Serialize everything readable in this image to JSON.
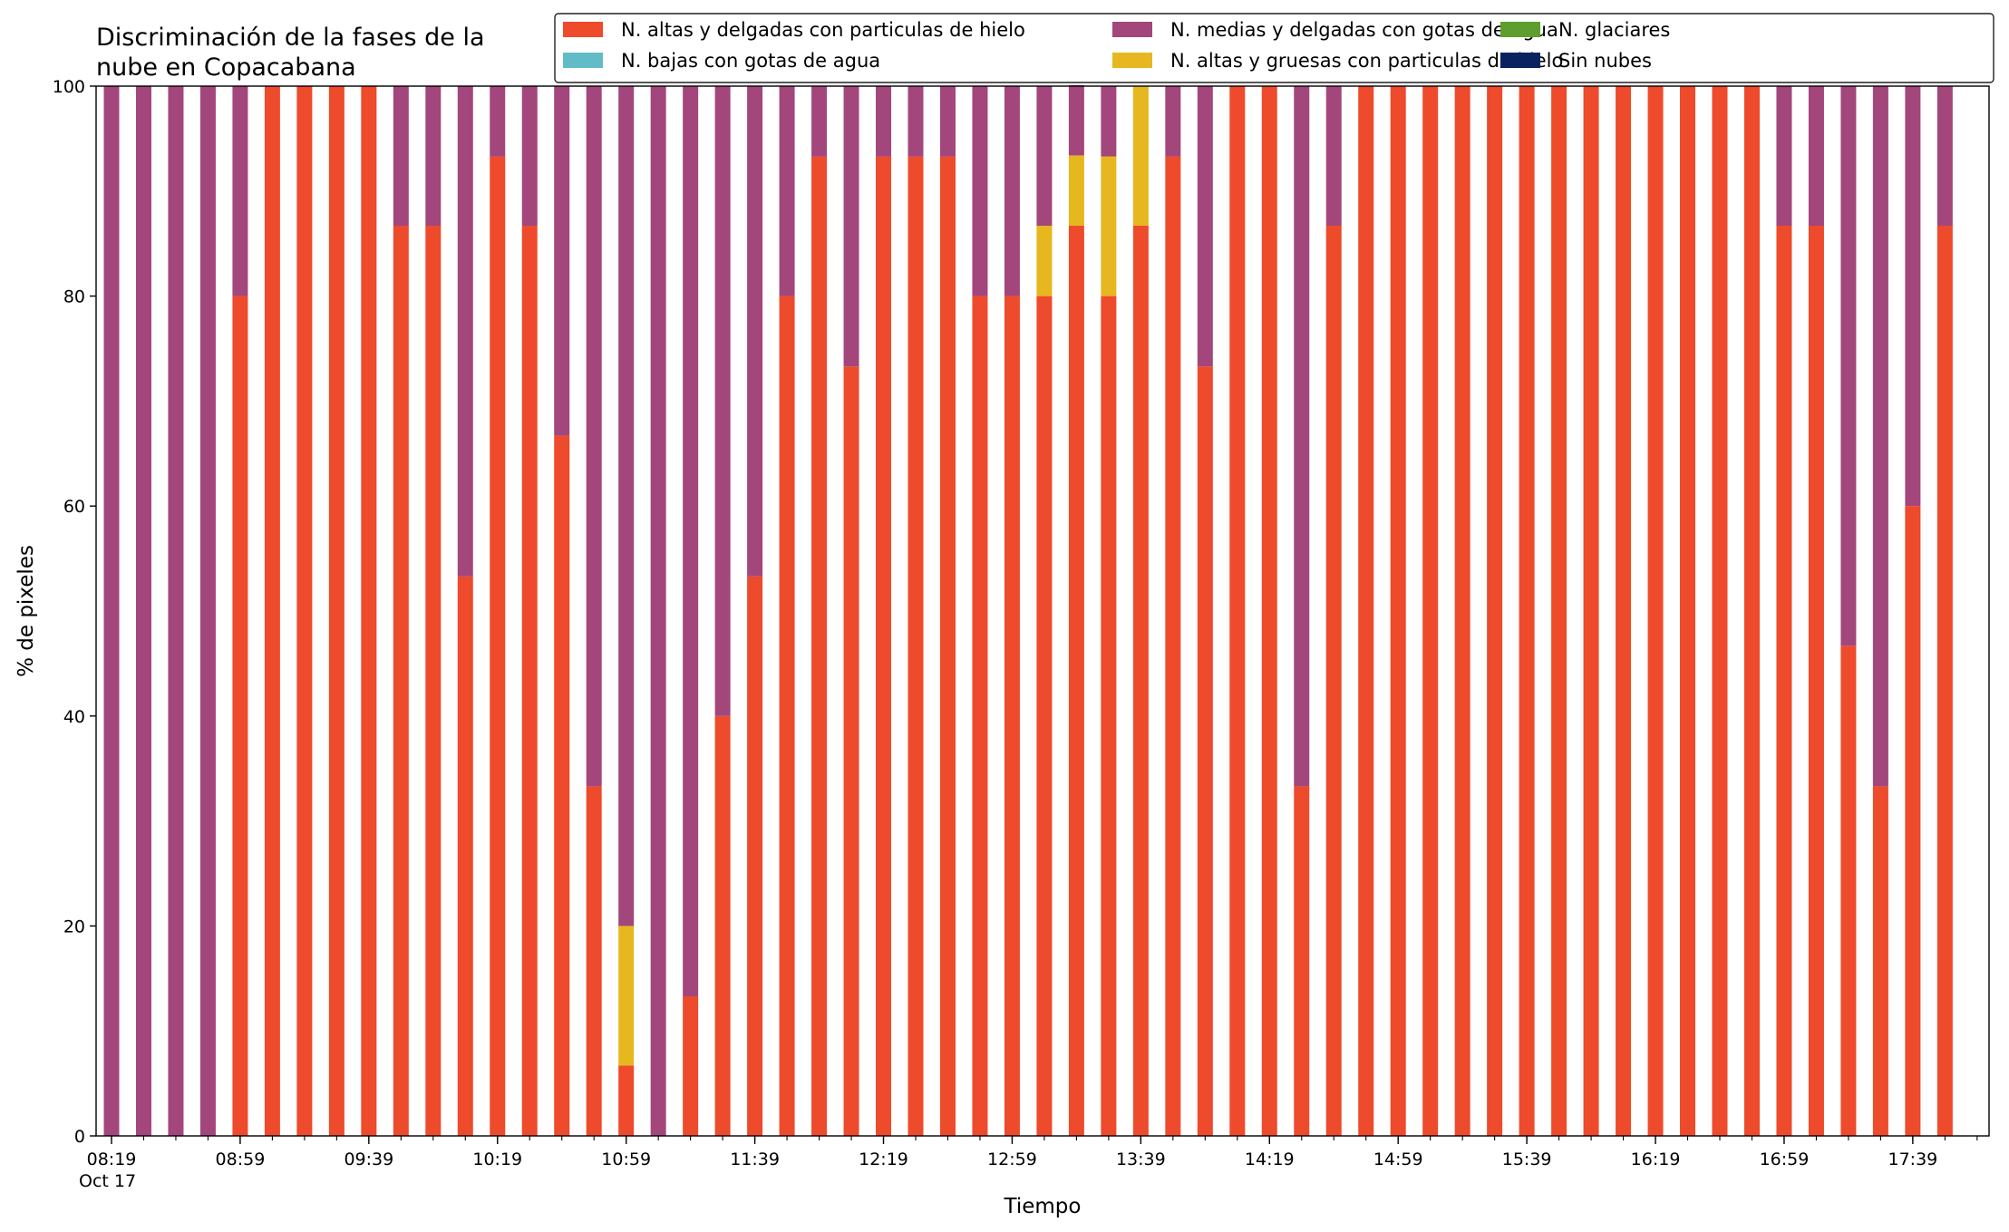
{
  "chart_data": {
    "type": "bar",
    "stacked": true,
    "title": "Discriminación de la fases de la nube en Copacabana",
    "title_lines": [
      "Discriminación de la fases de la",
      "nube en Copacabana"
    ],
    "xlabel": "Tiempo",
    "ylabel": "% de pixeles",
    "ylim": [
      0,
      100
    ],
    "yticks": [
      0,
      20,
      40,
      60,
      80,
      100
    ],
    "grid": false,
    "legend_position": "top-right",
    "x_start": "08:19",
    "x_step_minutes": 10,
    "xticks": [
      {
        "index": 0,
        "label": "08:19",
        "sublabel": "Oct 17"
      },
      {
        "index": 4,
        "label": "08:59"
      },
      {
        "index": 8,
        "label": "09:39"
      },
      {
        "index": 12,
        "label": "10:19"
      },
      {
        "index": 16,
        "label": "10:59"
      },
      {
        "index": 20,
        "label": "11:39"
      },
      {
        "index": 24,
        "label": "12:19"
      },
      {
        "index": 28,
        "label": "12:59"
      },
      {
        "index": 32,
        "label": "13:39"
      },
      {
        "index": 36,
        "label": "14:19"
      },
      {
        "index": 40,
        "label": "14:59"
      },
      {
        "index": 44,
        "label": "15:39"
      },
      {
        "index": 48,
        "label": "16:19"
      },
      {
        "index": 52,
        "label": "16:59"
      },
      {
        "index": 56,
        "label": "17:39"
      }
    ],
    "categories": [
      "08:19",
      "08:29",
      "08:39",
      "08:49",
      "08:59",
      "09:09",
      "09:19",
      "09:29",
      "09:39",
      "09:49",
      "09:59",
      "10:09",
      "10:19",
      "10:29",
      "10:39",
      "10:49",
      "10:59",
      "11:09",
      "11:19",
      "11:29",
      "11:39",
      "11:49",
      "11:59",
      "12:09",
      "12:19",
      "12:29",
      "12:39",
      "12:49",
      "12:59",
      "13:09",
      "13:19",
      "13:29",
      "13:39",
      "13:49",
      "13:59",
      "14:09",
      "14:19",
      "14:29",
      "14:39",
      "14:49",
      "14:59",
      "15:09",
      "15:19",
      "15:29",
      "15:39",
      "15:49",
      "15:59",
      "16:09",
      "16:19",
      "16:29",
      "16:39",
      "16:49",
      "16:59",
      "17:09",
      "17:19",
      "17:29",
      "17:39",
      "17:49"
    ],
    "series": [
      {
        "name": "N. altas y delgadas con particulas de hielo",
        "color": "#EE4A2C",
        "values": [
          0,
          0,
          0,
          0,
          80,
          100,
          100,
          100,
          100,
          86.7,
          86.7,
          53.3,
          93.3,
          86.7,
          66.7,
          33.3,
          6.7,
          0,
          13.3,
          40,
          53.3,
          80,
          93.3,
          73.3,
          93.3,
          93.3,
          93.3,
          80,
          80,
          80,
          86.7,
          80,
          86.7,
          93.3,
          73.3,
          100,
          100,
          33.3,
          86.7,
          100,
          100,
          100,
          100,
          100,
          100,
          100,
          100,
          100,
          100,
          100,
          100,
          100,
          86.7,
          86.7,
          46.7,
          33.3,
          60,
          86.7
        ]
      },
      {
        "name": "N. altas y gruesas con particulas de hielo",
        "color": "#E6B71E",
        "values": [
          0,
          0,
          0,
          0,
          0,
          0,
          0,
          0,
          0,
          0,
          0,
          0,
          0,
          0,
          0,
          0,
          13.3,
          0,
          0,
          0,
          0,
          0,
          0,
          0,
          0,
          0,
          0,
          0,
          0,
          6.7,
          6.7,
          13.3,
          13.3,
          0,
          0,
          0,
          0,
          0,
          0,
          0,
          0,
          0,
          0,
          0,
          0,
          0,
          0,
          0,
          0,
          0,
          0,
          0,
          0,
          0,
          0,
          0,
          0,
          0
        ]
      },
      {
        "name": "N. bajas con gotas de agua",
        "color": "#62BCC7",
        "values": [
          0,
          0,
          0,
          0,
          0,
          0,
          0,
          0,
          0,
          0,
          0,
          0,
          0,
          0,
          0,
          0,
          0,
          0,
          0,
          0,
          0,
          0,
          0,
          0,
          0,
          0,
          0,
          0,
          0,
          0,
          0,
          0,
          0,
          0,
          0,
          0,
          0,
          0,
          0,
          0,
          0,
          0,
          0,
          0,
          0,
          0,
          0,
          0,
          0,
          0,
          0,
          0,
          0,
          0,
          0,
          0,
          0,
          0
        ]
      },
      {
        "name": "N. glaciares",
        "color": "#5E9E2E",
        "values": [
          0,
          0,
          0,
          0,
          0,
          0,
          0,
          0,
          0,
          0,
          0,
          0,
          0,
          0,
          0,
          0,
          0,
          0,
          0,
          0,
          0,
          0,
          0,
          0,
          0,
          0,
          0,
          0,
          0,
          0,
          0,
          0,
          0,
          0,
          0,
          0,
          0,
          0,
          0,
          0,
          0,
          0,
          0,
          0,
          0,
          0,
          0,
          0,
          0,
          0,
          0,
          0,
          0,
          0,
          0,
          0,
          0,
          0
        ]
      },
      {
        "name": "N. medias y delgadas con gotas de agua",
        "color": "#A3467B",
        "values": [
          100,
          100,
          100,
          100,
          20,
          0,
          0,
          0,
          0,
          13.3,
          13.3,
          46.7,
          6.7,
          13.3,
          33.3,
          66.7,
          80,
          100,
          86.7,
          60,
          46.7,
          20,
          6.7,
          26.7,
          6.7,
          6.7,
          6.7,
          20,
          20,
          13.3,
          6.7,
          6.7,
          0,
          6.7,
          26.7,
          0,
          0,
          66.7,
          13.3,
          0,
          0,
          0,
          0,
          0,
          0,
          0,
          0,
          0,
          0,
          0,
          0,
          0,
          13.3,
          13.3,
          53.3,
          66.7,
          40,
          13.3
        ]
      },
      {
        "name": "Sin nubes",
        "color": "#0B2260",
        "values": [
          0,
          0,
          0,
          0,
          0,
          0,
          0,
          0,
          0,
          0,
          0,
          0,
          0,
          0,
          0,
          0,
          0,
          0,
          0,
          0,
          0,
          0,
          0,
          0,
          0,
          0,
          0,
          0,
          0,
          0,
          0,
          0,
          0,
          0,
          0,
          0,
          0,
          0,
          0,
          0,
          0,
          0,
          0,
          0,
          0,
          0,
          0,
          0,
          0,
          0,
          0,
          0,
          0,
          0,
          0,
          0,
          0,
          0
        ]
      }
    ],
    "legend_order": [
      0,
      2,
      4,
      1,
      3,
      5
    ]
  }
}
